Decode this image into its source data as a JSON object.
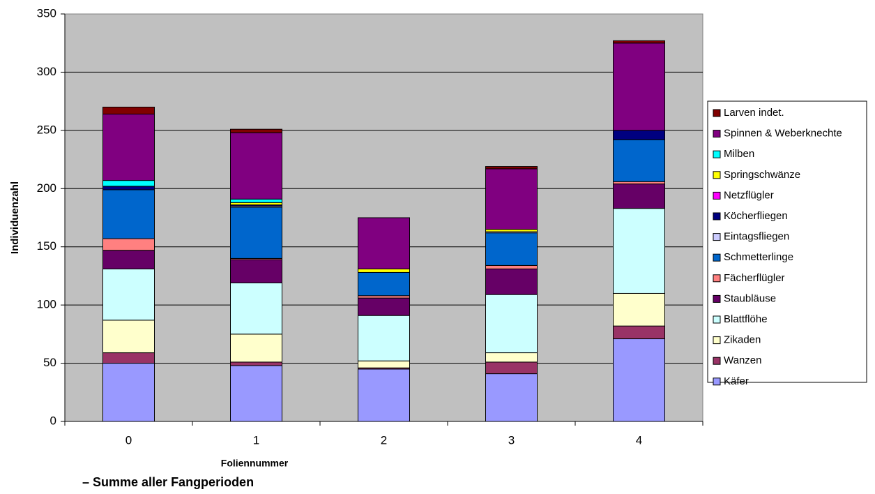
{
  "chart_data": {
    "type": "stacked_bar",
    "x_label": "Foliennummer",
    "y_label": "Individuenzahl",
    "subtitle": "– Summe aller Fangperioden",
    "categories": [
      "0",
      "1",
      "2",
      "3",
      "4"
    ],
    "ylim": [
      0,
      350
    ],
    "yticks": [
      0,
      50,
      100,
      150,
      200,
      250,
      300,
      350
    ],
    "grid": true,
    "legend": "right",
    "series": [
      {
        "name": "Käfer",
        "color": "#9999ff",
        "values": [
          50,
          48,
          45,
          41,
          71
        ]
      },
      {
        "name": "Wanzen",
        "color": "#993366",
        "values": [
          9,
          3,
          1,
          10,
          11
        ]
      },
      {
        "name": "Zikaden",
        "color": "#ffffcc",
        "values": [
          28,
          24,
          6,
          8,
          28
        ]
      },
      {
        "name": "Blattflöhe",
        "color": "#ccffff",
        "values": [
          44,
          44,
          39,
          50,
          73
        ]
      },
      {
        "name": "Staubläuse",
        "color": "#660066",
        "values": [
          16,
          20,
          15,
          22,
          21
        ]
      },
      {
        "name": "Fächerflügler",
        "color": "#ff8080",
        "values": [
          10,
          1,
          2,
          3,
          2
        ]
      },
      {
        "name": "Schmetterlinge",
        "color": "#0066cc",
        "values": [
          42,
          44,
          20,
          28,
          36
        ]
      },
      {
        "name": "Eintagsfliegen",
        "color": "#ccccff",
        "values": [
          0,
          1,
          0,
          1,
          0
        ]
      },
      {
        "name": "Köcherfliegen",
        "color": "#000080",
        "values": [
          3,
          1,
          0,
          0,
          8
        ]
      },
      {
        "name": "Netzflügler",
        "color": "#ff00ff",
        "values": [
          0,
          0,
          0,
          0,
          0
        ]
      },
      {
        "name": "Springschwänze",
        "color": "#ffff00",
        "values": [
          0,
          2,
          3,
          2,
          0
        ]
      },
      {
        "name": "Milben",
        "color": "#00ffff",
        "values": [
          5,
          3,
          0,
          0,
          0
        ]
      },
      {
        "name": "Spinnen & Weberknechte",
        "color": "#800080",
        "values": [
          57,
          57,
          44,
          52,
          75
        ]
      },
      {
        "name": "Larven indet.",
        "color": "#800000",
        "values": [
          6,
          3,
          0,
          2,
          2
        ]
      }
    ]
  }
}
